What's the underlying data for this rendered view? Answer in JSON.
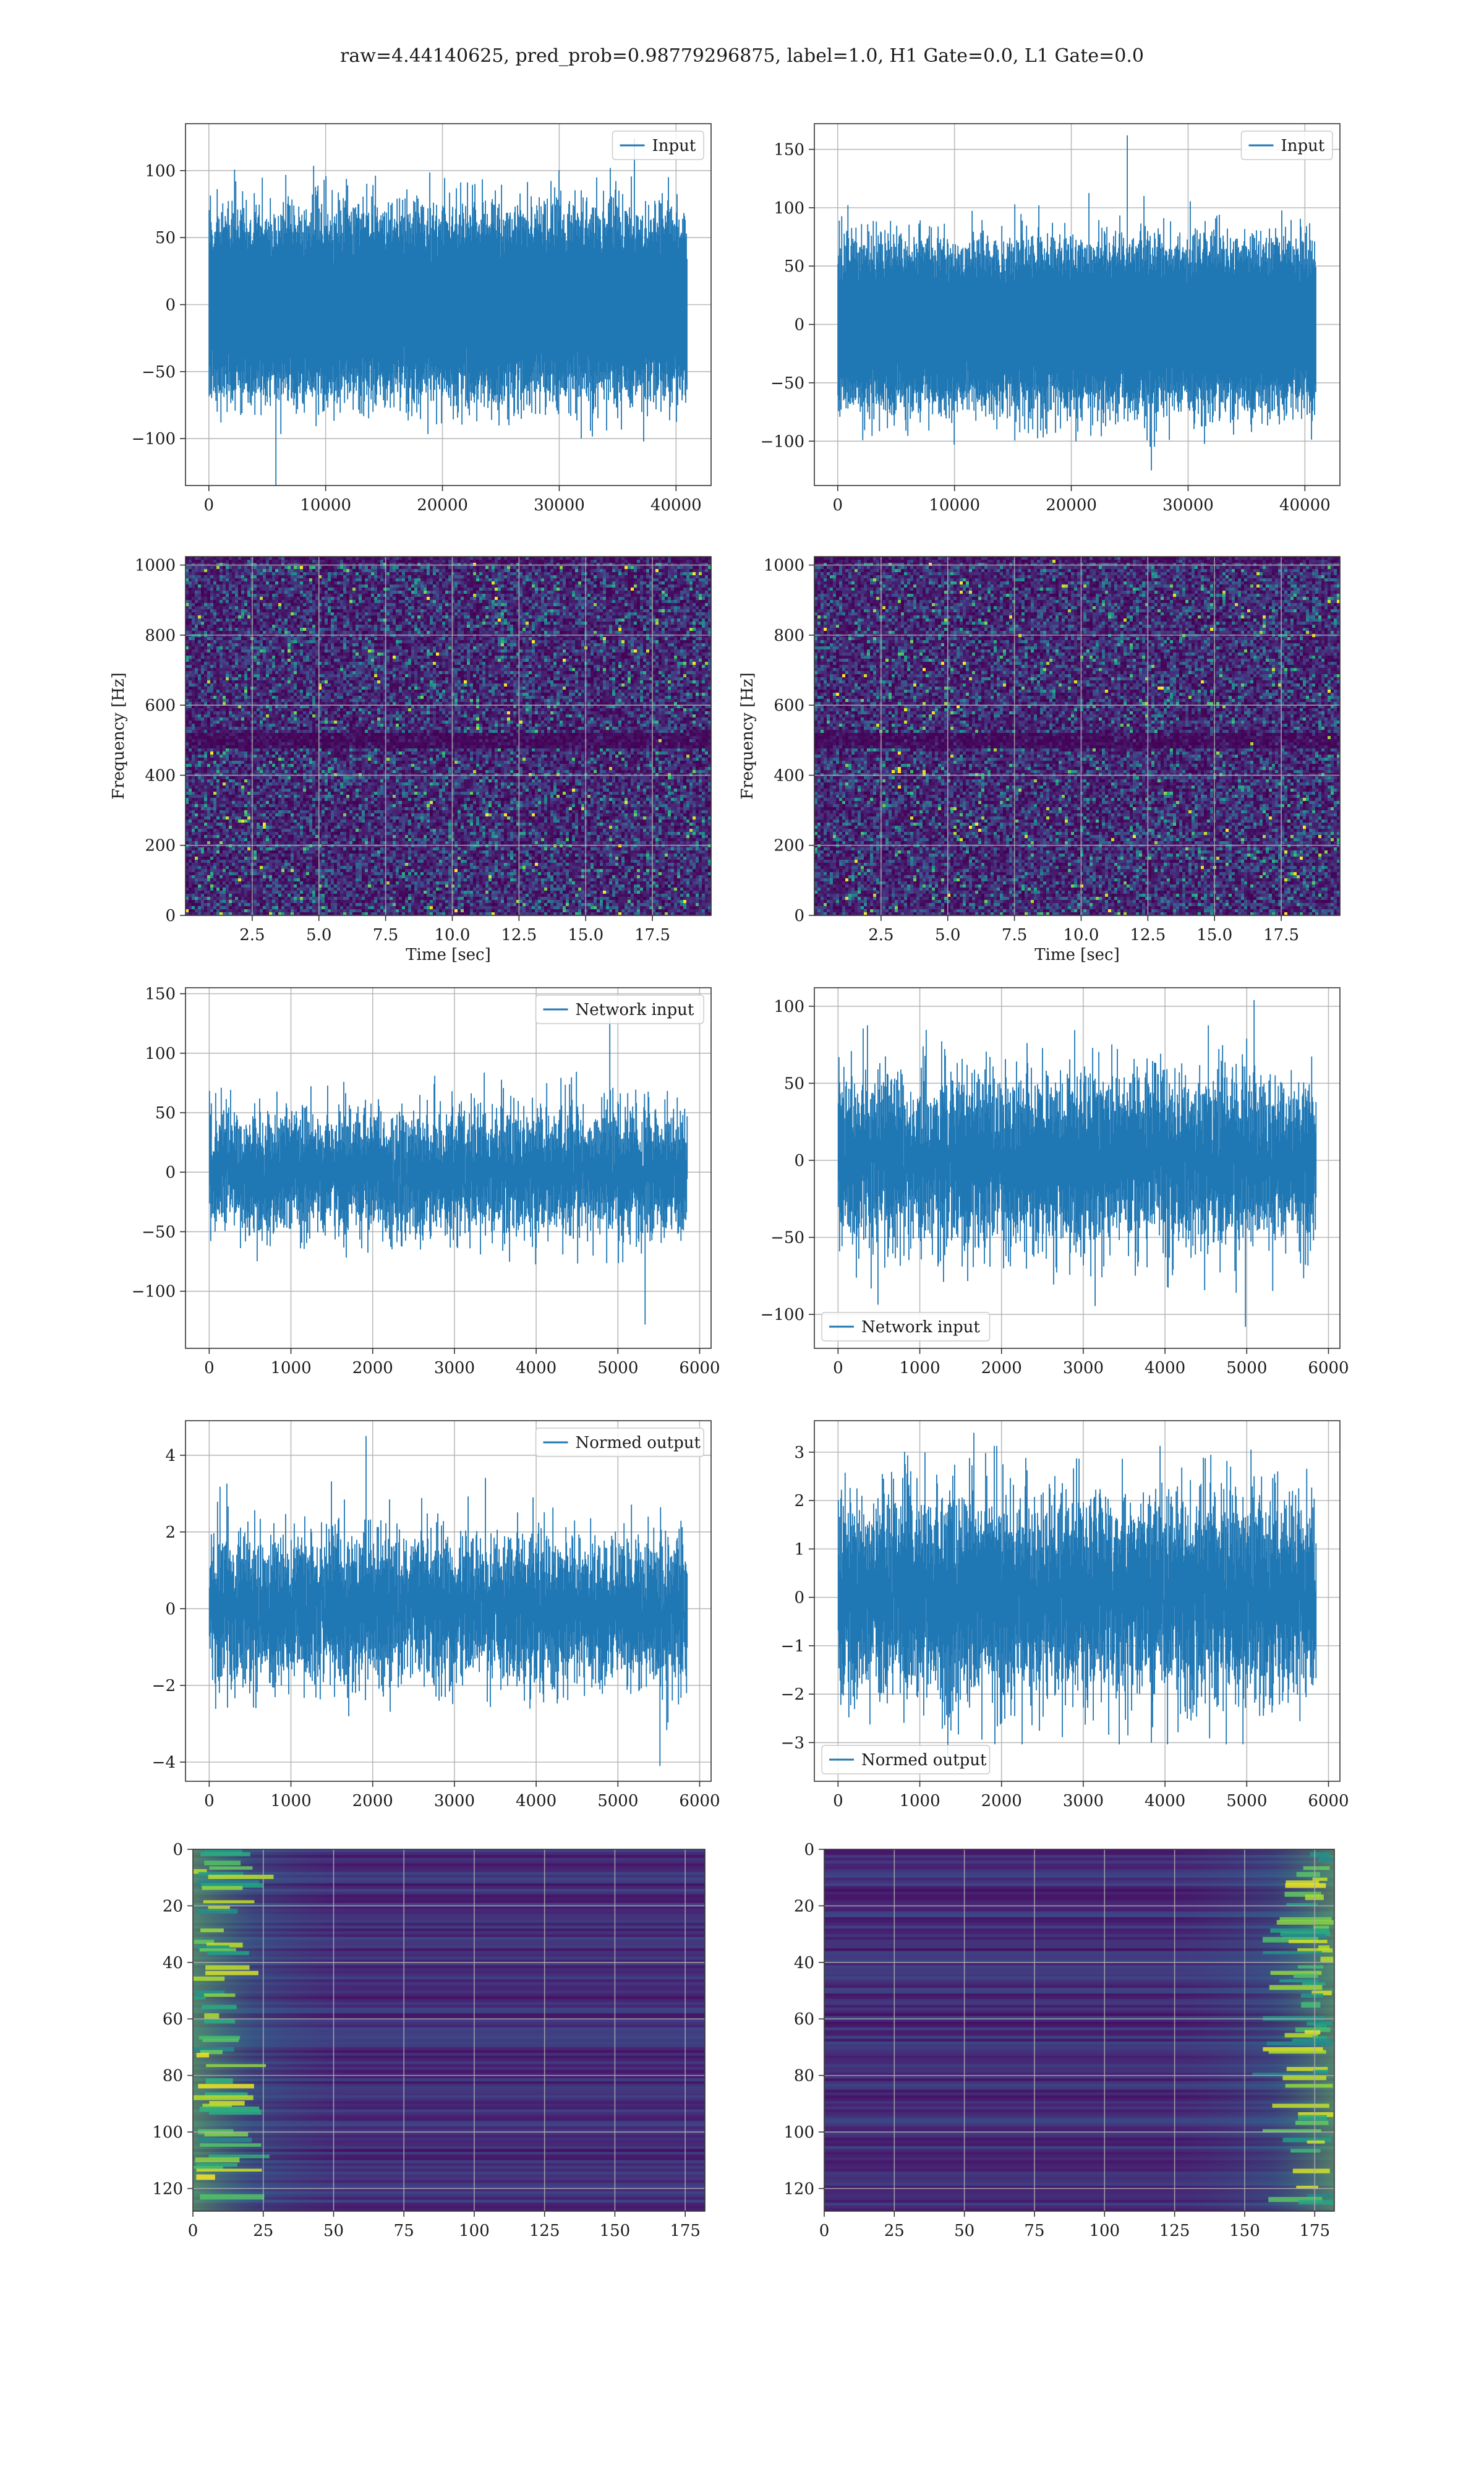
{
  "suptitle": "raw=4.44140625, pred_prob=0.98779296875, label=1.0, H1 Gate=0.0, L1 Gate=0.0",
  "colors": {
    "series": "#1f77b4",
    "grid": "#b0b0b0",
    "viridis_dark": "#440154",
    "viridis_mid": "#21918c",
    "viridis_bright": "#fde725"
  },
  "chart_data": [
    {
      "id": "input-left",
      "type": "line",
      "title": "",
      "xlabel": "",
      "ylabel": "",
      "legend": {
        "label": "Input",
        "loc": "top-right"
      },
      "series": [
        {
          "name": "Input",
          "n_points": 40960,
          "mean": 0,
          "std": 27,
          "min": -135,
          "max": 124
        }
      ],
      "xlim": [
        -2000,
        43000
      ],
      "ylim": [
        -135,
        135
      ],
      "xticks": [
        0,
        10000,
        20000,
        30000,
        40000
      ],
      "yticks": [
        -100,
        -50,
        0,
        50,
        100
      ],
      "grid": true
    },
    {
      "id": "input-right",
      "type": "line",
      "title": "",
      "xlabel": "",
      "ylabel": "",
      "legend": {
        "label": "Input",
        "loc": "top-right"
      },
      "series": [
        {
          "name": "Input",
          "n_points": 40960,
          "mean": 0,
          "std": 28,
          "min": -125,
          "max": 162
        }
      ],
      "xlim": [
        -2000,
        43000
      ],
      "ylim": [
        -138,
        172
      ],
      "xticks": [
        0,
        10000,
        20000,
        30000,
        40000
      ],
      "yticks": [
        -100,
        -50,
        0,
        50,
        100,
        150
      ],
      "grid": true
    },
    {
      "id": "spectrogram-left",
      "type": "heatmap",
      "title": "",
      "xlabel": "Time [sec]",
      "ylabel": "Frequency [Hz]",
      "colormap": "viridis",
      "xlim": [
        0,
        19.7
      ],
      "ylim": [
        0,
        1024
      ],
      "xticks": [
        2.5,
        5.0,
        7.5,
        10.0,
        12.5,
        15.0,
        17.5
      ],
      "yticks": [
        0,
        200,
        400,
        600,
        800,
        1000
      ],
      "dark_band_hz": [
        480,
        520
      ],
      "grid": true
    },
    {
      "id": "spectrogram-right",
      "type": "heatmap",
      "title": "",
      "xlabel": "Time [sec]",
      "ylabel": "Frequency [Hz]",
      "colormap": "viridis",
      "xlim": [
        0,
        19.7
      ],
      "ylim": [
        0,
        1024
      ],
      "xticks": [
        2.5,
        5.0,
        7.5,
        10.0,
        12.5,
        15.0,
        17.5
      ],
      "yticks": [
        0,
        200,
        400,
        600,
        800,
        1000
      ],
      "dark_band_hz": [
        480,
        520
      ],
      "grid": true
    },
    {
      "id": "network-left",
      "type": "line",
      "title": "",
      "xlabel": "",
      "ylabel": "",
      "legend": {
        "label": "Network input",
        "loc": "top-right"
      },
      "series": [
        {
          "name": "Network input",
          "n_points": 5851,
          "mean": 0,
          "std": 24,
          "min": -128,
          "max": 140
        }
      ],
      "xlim": [
        -290,
        6140
      ],
      "ylim": [
        -148,
        155
      ],
      "xticks": [
        0,
        1000,
        2000,
        3000,
        4000,
        5000,
        6000
      ],
      "yticks": [
        -100,
        -50,
        0,
        50,
        100,
        150
      ],
      "grid": true
    },
    {
      "id": "network-right",
      "type": "line",
      "title": "",
      "xlabel": "",
      "ylabel": "",
      "legend": {
        "label": "Network input",
        "loc": "bottom-left"
      },
      "series": [
        {
          "name": "Network input",
          "n_points": 5851,
          "mean": 0,
          "std": 26,
          "min": -108,
          "max": 104
        }
      ],
      "xlim": [
        -290,
        6140
      ],
      "ylim": [
        -122,
        112
      ],
      "xticks": [
        0,
        1000,
        2000,
        3000,
        4000,
        5000,
        6000
      ],
      "yticks": [
        -100,
        -50,
        0,
        50,
        100
      ],
      "grid": true
    },
    {
      "id": "normed-left",
      "type": "line",
      "title": "",
      "xlabel": "",
      "ylabel": "",
      "legend": {
        "label": "Normed output",
        "loc": "top-right"
      },
      "series": [
        {
          "name": "Normed output",
          "n_points": 5851,
          "mean": 0,
          "std": 0.9,
          "min": -4.1,
          "max": 4.5
        }
      ],
      "xlim": [
        -290,
        6140
      ],
      "ylim": [
        -4.5,
        4.9
      ],
      "xticks": [
        0,
        1000,
        2000,
        3000,
        4000,
        5000,
        6000
      ],
      "yticks": [
        -4,
        -2,
        0,
        2,
        4
      ],
      "grid": true
    },
    {
      "id": "normed-right",
      "type": "line",
      "title": "",
      "xlabel": "",
      "ylabel": "",
      "legend": {
        "label": "Normed output",
        "loc": "bottom-left"
      },
      "series": [
        {
          "name": "Normed output",
          "n_points": 5851,
          "mean": 0,
          "std": 1.0,
          "min": -3.3,
          "max": 3.4
        }
      ],
      "xlim": [
        -290,
        6140
      ],
      "ylim": [
        -3.8,
        3.65
      ],
      "xticks": [
        0,
        1000,
        2000,
        3000,
        4000,
        5000,
        6000
      ],
      "yticks": [
        -3,
        -2,
        -1,
        0,
        1,
        2,
        3
      ],
      "grid": true
    },
    {
      "id": "embedding-left",
      "type": "heatmap",
      "title": "",
      "xlabel": "",
      "ylabel": "",
      "colormap": "viridis",
      "xlim": [
        0,
        182
      ],
      "ylim": [
        128,
        0
      ],
      "xticks": [
        0,
        25,
        50,
        75,
        100,
        125,
        150,
        175
      ],
      "yticks": [
        0,
        20,
        40,
        60,
        80,
        100,
        120
      ],
      "bright_region": "left columns 0-25",
      "grid": true
    },
    {
      "id": "embedding-right",
      "type": "heatmap",
      "title": "",
      "xlabel": "",
      "ylabel": "",
      "colormap": "viridis",
      "xlim": [
        0,
        182
      ],
      "ylim": [
        128,
        0
      ],
      "xticks": [
        0,
        25,
        50,
        75,
        100,
        125,
        150,
        175
      ],
      "yticks": [
        0,
        20,
        40,
        60,
        80,
        100,
        120
      ],
      "bright_region": "right columns 150-182",
      "grid": true
    }
  ]
}
